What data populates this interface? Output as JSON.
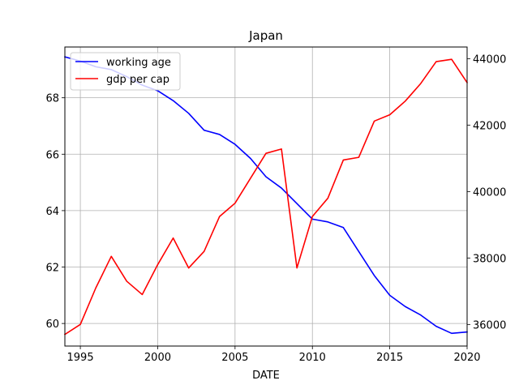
{
  "chart_data": {
    "type": "line",
    "title": "Japan",
    "xlabel": "DATE",
    "ylabel": "",
    "ylabel_right": "",
    "xlim": [
      1994,
      2020
    ],
    "ylim": [
      59.2,
      69.8
    ],
    "ylim_right": [
      35350,
      44350
    ],
    "x_ticks": [
      1995,
      2000,
      2005,
      2010,
      2015,
      2020
    ],
    "y_ticks": [
      60,
      62,
      64,
      66,
      68
    ],
    "y_ticks_right": [
      36000,
      38000,
      40000,
      42000,
      44000
    ],
    "grid": true,
    "legend_position": "upper-left",
    "x": [
      1994,
      1995,
      1996,
      1997,
      1998,
      1999,
      2000,
      2001,
      2002,
      2003,
      2004,
      2005,
      2006,
      2007,
      2008,
      2009,
      2010,
      2011,
      2012,
      2013,
      2014,
      2015,
      2016,
      2017,
      2018,
      2019,
      2020
    ],
    "series": [
      {
        "name": "working age",
        "axis": "left",
        "color": "#0000ff",
        "values": [
          69.45,
          69.3,
          69.1,
          69.0,
          68.75,
          68.45,
          68.25,
          67.9,
          67.45,
          66.85,
          66.7,
          66.35,
          65.85,
          65.2,
          64.8,
          64.25,
          63.7,
          63.6,
          63.4,
          62.55,
          61.7,
          61.0,
          60.6,
          60.3,
          59.9,
          59.65,
          59.7
        ]
      },
      {
        "name": "gdp per cap",
        "axis": "right",
        "color": "#ff0000",
        "values": [
          35700,
          36000,
          37100,
          38050,
          37300,
          36900,
          37800,
          38600,
          37700,
          38200,
          39250,
          39650,
          40400,
          41150,
          41280,
          37700,
          39250,
          39800,
          40950,
          41030,
          42120,
          42310,
          42720,
          43250,
          43910,
          43980,
          43280
        ]
      }
    ]
  }
}
